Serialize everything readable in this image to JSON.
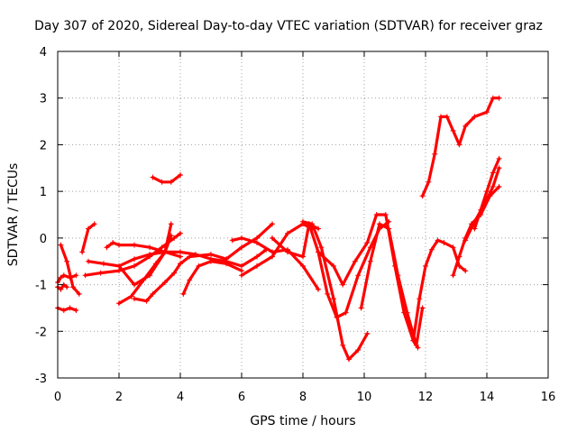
{
  "chart_data": {
    "type": "scatter",
    "title": "Day 307 of 2020, Sidereal Day-to-day VTEC variation (SDTVAR) for receiver graz",
    "xlabel": "GPS time / hours",
    "ylabel": "SDTVAR / TECUs",
    "xlim": [
      0,
      16
    ],
    "ylim": [
      -3,
      4
    ],
    "xticks": [
      "0",
      "2",
      "4",
      "6",
      "8",
      "10",
      "12",
      "14",
      "16"
    ],
    "yticks": [
      "-3",
      "-2",
      "-1",
      "0",
      "1",
      "2",
      "3",
      "4"
    ],
    "grid": true,
    "marker": "+",
    "color": "#ff0000",
    "series": [
      {
        "name": "trace-1",
        "x": [
          0.0,
          0.2,
          0.4,
          0.6
        ],
        "y": [
          -1.5,
          -1.55,
          -1.5,
          -1.55
        ]
      },
      {
        "name": "trace-2",
        "x": [
          0.0,
          0.1,
          0.2,
          0.4,
          0.6
        ],
        "y": [
          -0.95,
          -0.85,
          -0.8,
          -0.85,
          -0.8
        ]
      },
      {
        "name": "trace-3",
        "x": [
          0.1,
          0.3,
          0.5,
          0.7
        ],
        "y": [
          -0.15,
          -0.5,
          -1.05,
          -1.2
        ]
      },
      {
        "name": "trace-4",
        "x": [
          0.0,
          0.1,
          0.2,
          0.3
        ],
        "y": [
          -1.05,
          -1.1,
          -1.0,
          -1.05
        ]
      },
      {
        "name": "trace-5",
        "x": [
          0.8,
          1.0,
          1.2
        ],
        "y": [
          -0.3,
          0.2,
          0.3
        ]
      },
      {
        "name": "trace-6",
        "x": [
          0.9,
          1.4,
          2.0,
          2.5,
          3.0,
          3.4,
          3.8,
          4.0
        ],
        "y": [
          -0.8,
          -0.75,
          -0.7,
          -0.6,
          -0.4,
          -0.2,
          0.0,
          0.1
        ]
      },
      {
        "name": "trace-7",
        "x": [
          1.0,
          1.5,
          2.0,
          2.5,
          3.0,
          3.5,
          4.0
        ],
        "y": [
          -0.5,
          -0.55,
          -0.6,
          -0.45,
          -0.35,
          -0.3,
          -0.3
        ]
      },
      {
        "name": "trace-8",
        "x": [
          1.6,
          1.8,
          2.0,
          2.5,
          3.0,
          3.5,
          4.0
        ],
        "y": [
          -0.2,
          -0.1,
          -0.15,
          -0.15,
          -0.2,
          -0.3,
          -0.4
        ]
      },
      {
        "name": "trace-9",
        "x": [
          2.0,
          2.4,
          2.8,
          3.2,
          3.5,
          3.7
        ],
        "y": [
          -1.4,
          -1.25,
          -0.9,
          -0.55,
          -0.3,
          0.05
        ]
      },
      {
        "name": "trace-10",
        "x": [
          2.5,
          2.9,
          3.1,
          3.5,
          3.8,
          4.0
        ],
        "y": [
          -1.3,
          -1.35,
          -1.2,
          -0.95,
          -0.75,
          -0.55
        ]
      },
      {
        "name": "trace-11",
        "x": [
          2.0,
          2.5,
          3.0,
          3.5,
          3.7
        ],
        "y": [
          -0.6,
          -1.0,
          -0.8,
          -0.3,
          0.3
        ]
      },
      {
        "name": "trace-12",
        "x": [
          3.1,
          3.4,
          3.7,
          4.0
        ],
        "y": [
          1.3,
          1.2,
          1.2,
          1.35
        ]
      },
      {
        "name": "trace-13",
        "x": [
          4.0,
          4.5,
          5.0,
          5.5,
          6.0,
          6.5,
          6.8
        ],
        "y": [
          -0.3,
          -0.35,
          -0.45,
          -0.5,
          -0.6,
          -0.4,
          -0.25
        ]
      },
      {
        "name": "trace-14",
        "x": [
          4.0,
          4.3,
          5.0,
          5.5,
          6.0,
          6.5,
          7.0
        ],
        "y": [
          -0.55,
          -0.4,
          -0.35,
          -0.45,
          -0.2,
          0.0,
          0.3
        ]
      },
      {
        "name": "trace-15",
        "x": [
          4.1,
          4.3,
          4.6,
          5.0,
          5.5,
          6.0
        ],
        "y": [
          -1.2,
          -0.9,
          -0.6,
          -0.5,
          -0.55,
          -0.7
        ]
      },
      {
        "name": "trace-16",
        "x": [
          5.7,
          6.0,
          6.5,
          7.0,
          7.5,
          8.0,
          8.5
        ],
        "y": [
          -0.05,
          0.0,
          -0.1,
          -0.3,
          -0.25,
          -0.6,
          -1.1
        ]
      },
      {
        "name": "trace-17",
        "x": [
          6.0,
          6.5,
          7.0,
          7.5,
          8.0,
          8.3
        ],
        "y": [
          -0.8,
          -0.6,
          -0.4,
          0.1,
          0.3,
          0.2
        ]
      },
      {
        "name": "trace-18",
        "x": [
          7.0,
          7.5,
          8.0,
          8.2,
          8.5
        ],
        "y": [
          0.0,
          -0.3,
          -0.4,
          0.3,
          0.2
        ]
      },
      {
        "name": "trace-19",
        "x": [
          8.0,
          8.3,
          8.6,
          9.0,
          9.3,
          9.5,
          9.8,
          10.1
        ],
        "y": [
          0.35,
          0.3,
          -0.2,
          -1.3,
          -2.3,
          -2.6,
          -2.4,
          -2.05
        ]
      },
      {
        "name": "trace-20",
        "x": [
          8.2,
          8.5,
          8.8,
          9.1,
          9.4,
          9.8,
          10.2,
          10.5,
          10.8
        ],
        "y": [
          0.3,
          -0.3,
          -1.2,
          -1.7,
          -1.6,
          -0.8,
          -0.2,
          0.2,
          0.35
        ]
      },
      {
        "name": "trace-21",
        "x": [
          8.5,
          9.0,
          9.3,
          9.7,
          10.1,
          10.4,
          10.7,
          11.0,
          11.3,
          11.6,
          11.75
        ],
        "y": [
          -0.3,
          -0.6,
          -1.0,
          -0.5,
          -0.1,
          0.5,
          0.5,
          -0.6,
          -1.6,
          -2.2,
          -2.35
        ]
      },
      {
        "name": "trace-22",
        "x": [
          9.9,
          10.2,
          10.5,
          10.8,
          11.1,
          11.4,
          11.7,
          11.9
        ],
        "y": [
          -1.5,
          -0.5,
          0.3,
          0.2,
          -0.8,
          -1.6,
          -2.3,
          -1.5
        ]
      },
      {
        "name": "trace-23",
        "x": [
          11.6,
          11.8,
          12.0,
          12.2,
          12.4,
          12.6,
          12.9,
          13.1,
          13.3
        ],
        "y": [
          -2.2,
          -1.3,
          -0.6,
          -0.25,
          -0.05,
          -0.1,
          -0.2,
          -0.6,
          -0.7
        ]
      },
      {
        "name": "trace-24",
        "x": [
          11.9,
          12.1,
          12.3,
          12.5,
          12.7,
          12.9,
          13.1,
          13.3,
          13.6,
          14.0,
          14.2,
          14.4
        ],
        "y": [
          0.9,
          1.2,
          1.8,
          2.6,
          2.6,
          2.3,
          2.0,
          2.4,
          2.6,
          2.7,
          3.0,
          3.0
        ]
      },
      {
        "name": "trace-25",
        "x": [
          12.9,
          13.1,
          13.3,
          13.5,
          13.8,
          14.1,
          14.4
        ],
        "y": [
          -0.8,
          -0.4,
          0.0,
          0.3,
          0.5,
          0.9,
          1.1
        ]
      },
      {
        "name": "trace-26",
        "x": [
          13.6,
          13.8,
          14.0,
          14.2,
          14.4
        ],
        "y": [
          0.2,
          0.6,
          1.0,
          1.4,
          1.7
        ]
      },
      {
        "name": "trace-27",
        "x": [
          13.3,
          13.6,
          13.9,
          14.2,
          14.4
        ],
        "y": [
          -0.05,
          0.35,
          0.7,
          1.1,
          1.5
        ]
      }
    ]
  }
}
